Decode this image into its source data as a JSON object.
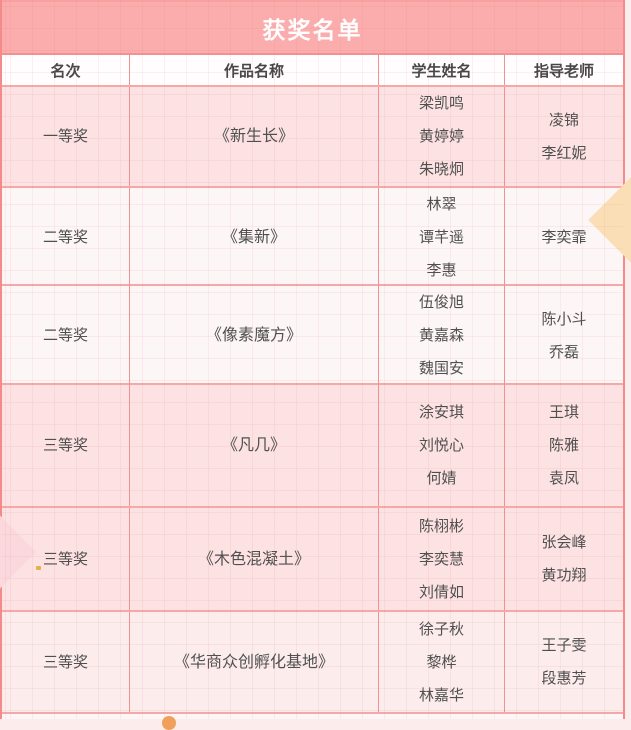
{
  "title": "获奖名单",
  "columns": [
    "名次",
    "作品名称",
    "学生姓名",
    "指导老师"
  ],
  "rows": [
    {
      "rank": "一等奖",
      "work": "《新生长》",
      "students": [
        "梁凯鸣",
        "黄婷婷",
        "朱晓炯"
      ],
      "teachers": [
        "凌锦",
        "李红妮"
      ]
    },
    {
      "rank": "二等奖",
      "work": "《集新》",
      "students": [
        "林翠",
        "谭芊遥",
        "李惠"
      ],
      "teachers": [
        "李奕霏"
      ]
    },
    {
      "rank": "二等奖",
      "work": "《像素魔方》",
      "students": [
        "伍俊旭",
        "黄嘉森",
        "魏国安"
      ],
      "teachers": [
        "陈小斗",
        "乔磊"
      ]
    },
    {
      "rank": "三等奖",
      "work": "《凡几》",
      "students": [
        "涂安琪",
        "刘悦心",
        "何婧"
      ],
      "teachers": [
        "王琪",
        "陈雅",
        "袁凤"
      ]
    },
    {
      "rank": "三等奖",
      "work": "《木色混凝土》",
      "students": [
        "陈栩彬",
        "李奕慧",
        "刘倩如"
      ],
      "teachers": [
        "张会峰",
        "黄功翔"
      ]
    },
    {
      "rank": "三等奖",
      "work": "《华商众创孵化基地》",
      "students": [
        "徐子秋",
        "黎桦",
        "林嘉华"
      ],
      "teachers": [
        "王子雯",
        "段惠芳"
      ]
    }
  ],
  "colors": {
    "title_bar_bg": "#fbadad",
    "title_text": "#ffffff",
    "pink_row_bg": "#fce2e2",
    "light_row_bg": "#fdf6f6",
    "border_horizontal": "#f6a8a8",
    "border_vertical": "#f19191",
    "text": "#4f4f4f",
    "diamond_right": "#fadfb6",
    "diamond_left": "#fbd8dd"
  }
}
